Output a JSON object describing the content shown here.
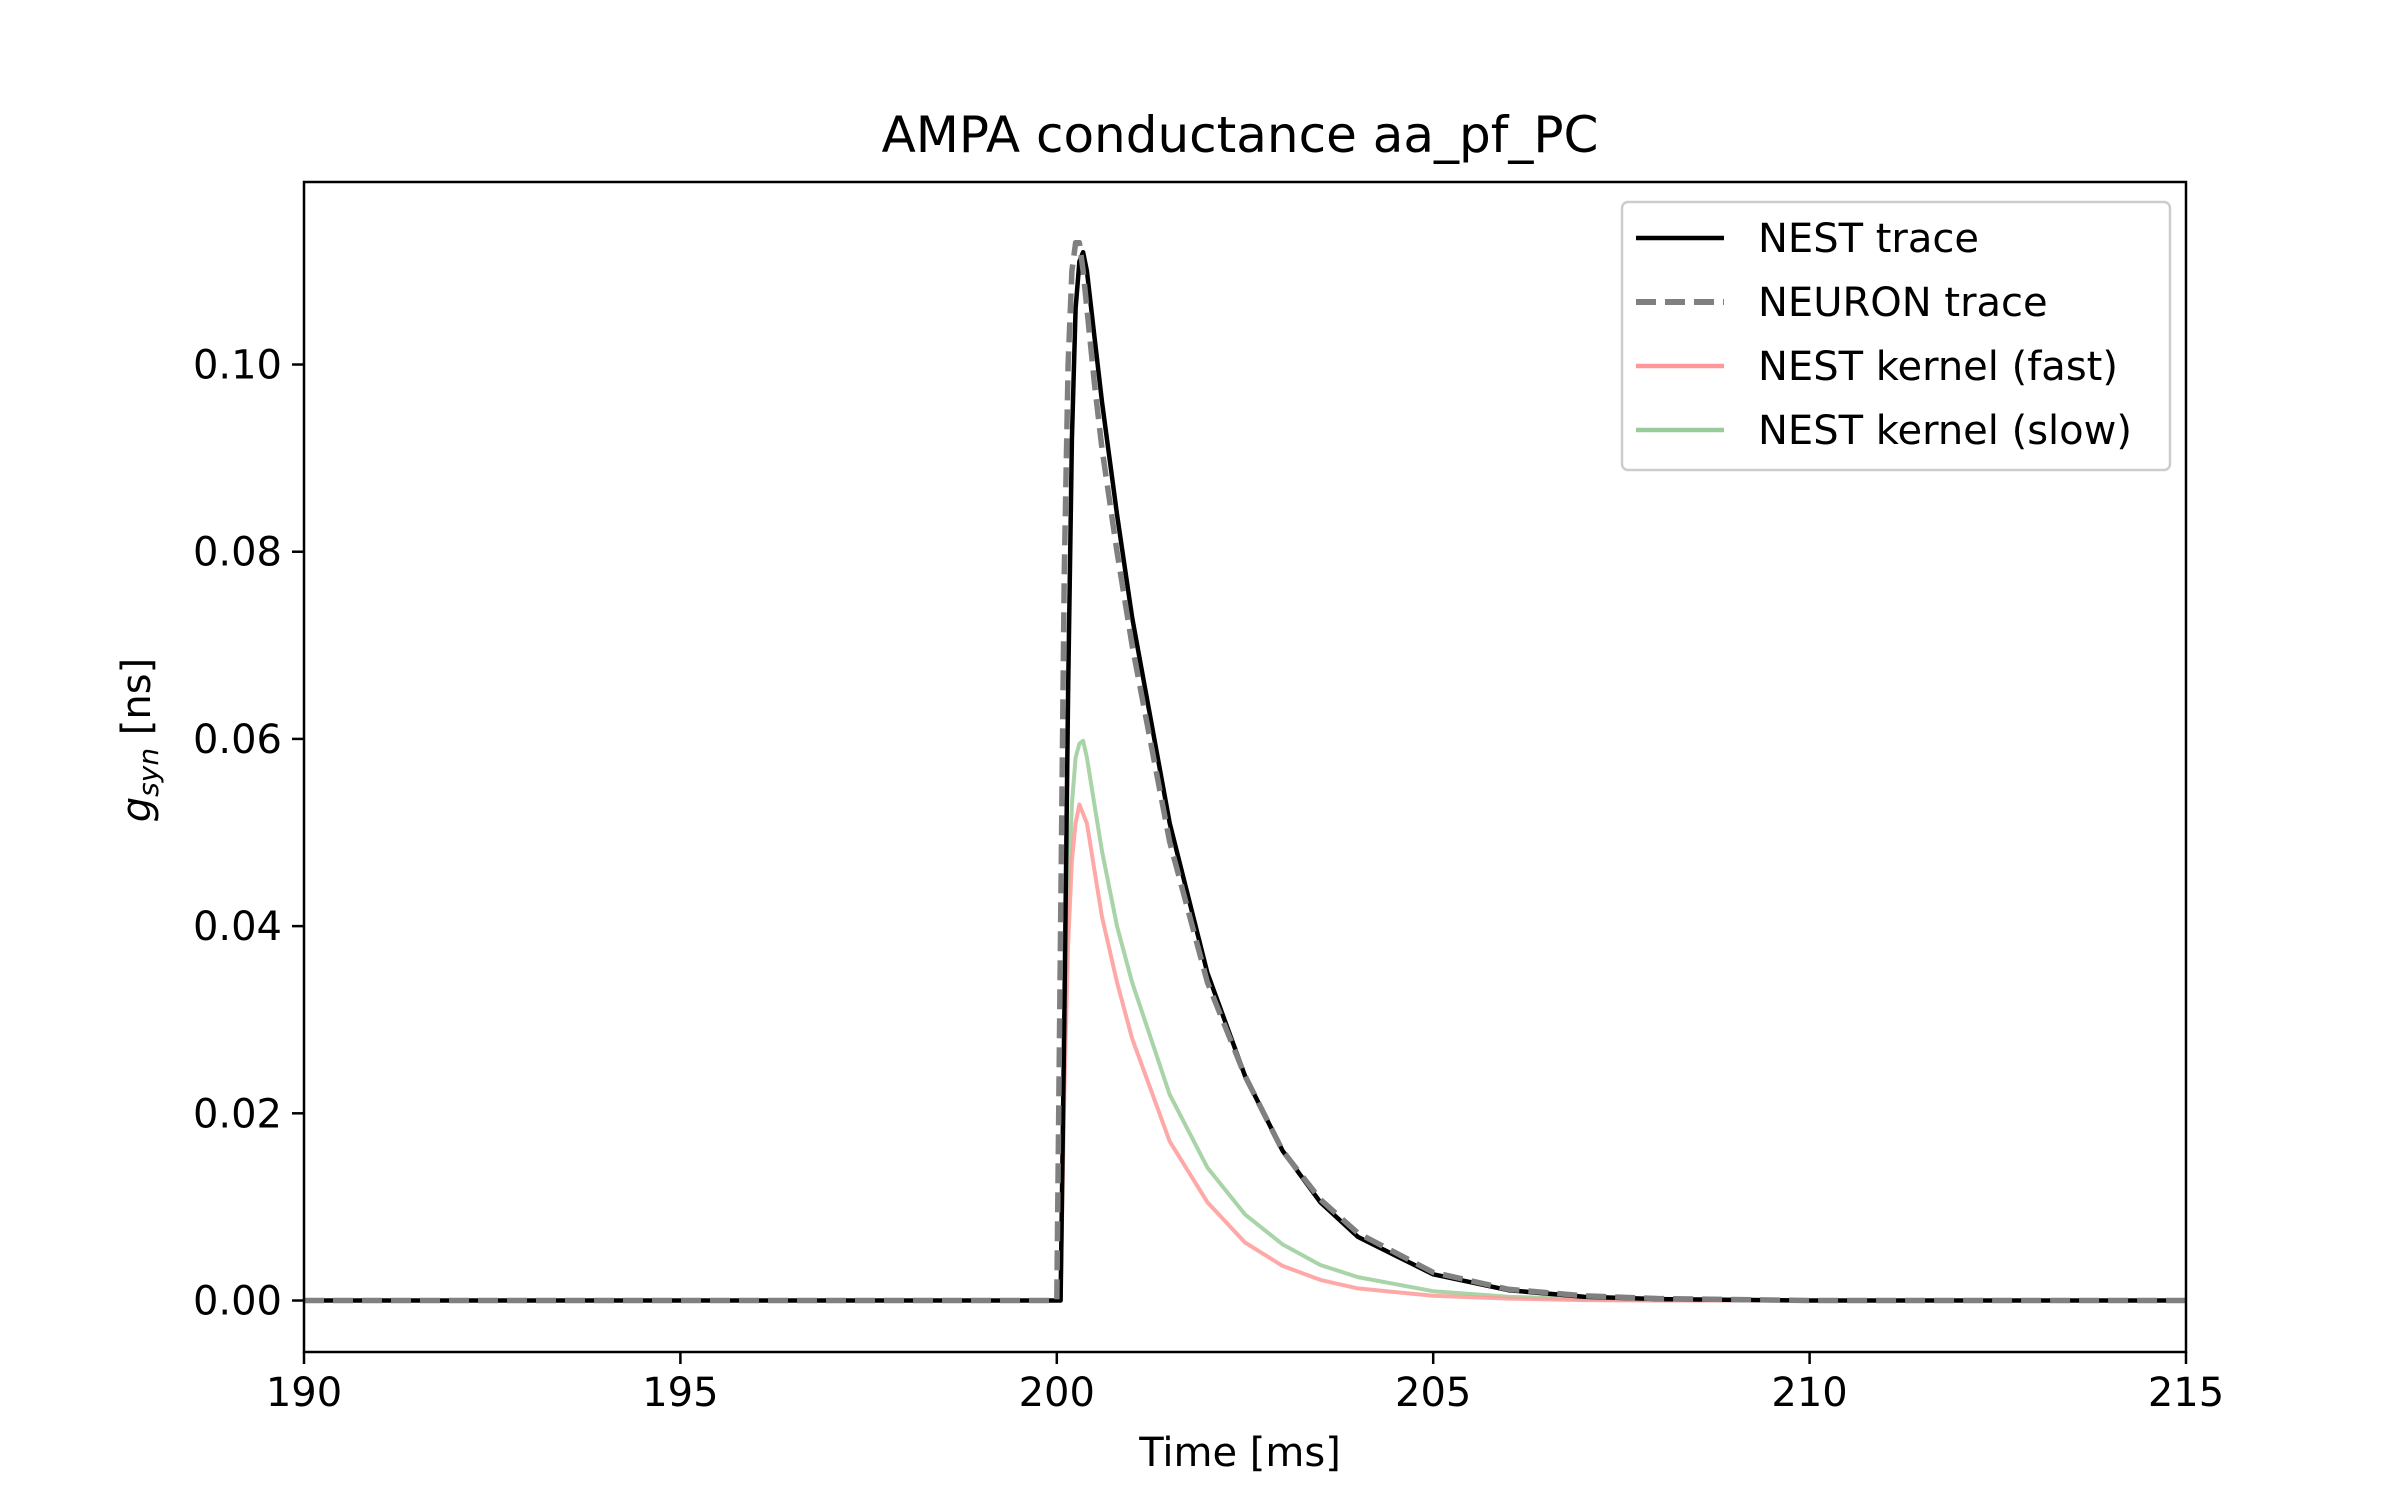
{
  "chart_data": {
    "type": "line",
    "title": "AMPA conductance aa_pf_PC",
    "xlabel": "Time [ms]",
    "ylabel": {
      "main": "g",
      "sub": "syn",
      "unit": " [ns]"
    },
    "xlim": [
      190,
      215
    ],
    "ylim": [
      -0.0055,
      0.1195
    ],
    "xticks": [
      190,
      195,
      200,
      205,
      210,
      215
    ],
    "xtick_labels": [
      "190",
      "195",
      "200",
      "205",
      "210",
      "215"
    ],
    "yticks": [
      0.0,
      0.02,
      0.04,
      0.06,
      0.08,
      0.1
    ],
    "ytick_labels": [
      "0.00",
      "0.02",
      "0.04",
      "0.06",
      "0.08",
      "0.10"
    ],
    "grid": false,
    "legend_position": "top-right",
    "series": [
      {
        "name": "NEST trace",
        "color": "#000000",
        "style": "solid",
        "x": [
          190,
          200.05,
          200.1,
          200.15,
          200.2,
          200.25,
          200.3,
          200.35,
          200.4,
          200.5,
          200.6,
          200.8,
          201.0,
          201.5,
          202.0,
          202.5,
          203.0,
          203.5,
          204.0,
          205.0,
          206.0,
          207.0,
          208.0,
          210.0,
          215.0
        ],
        "y": [
          0.0,
          0.0,
          0.03,
          0.065,
          0.092,
          0.106,
          0.111,
          0.112,
          0.11,
          0.103,
          0.096,
          0.084,
          0.073,
          0.051,
          0.035,
          0.024,
          0.016,
          0.0105,
          0.0068,
          0.0028,
          0.0011,
          0.0004,
          0.00015,
          0.0,
          0.0
        ]
      },
      {
        "name": "NEURON trace",
        "color": "#808080",
        "style": "dashed",
        "x": [
          190,
          200.0,
          200.05,
          200.1,
          200.15,
          200.2,
          200.25,
          200.3,
          200.35,
          200.4,
          200.5,
          200.6,
          200.8,
          201.0,
          201.5,
          202.0,
          202.5,
          203.0,
          203.5,
          204.0,
          205.0,
          206.0,
          207.0,
          208.0,
          210.0,
          215.0
        ],
        "y": [
          0.0,
          0.0,
          0.04,
          0.078,
          0.1,
          0.11,
          0.113,
          0.113,
          0.11,
          0.106,
          0.098,
          0.091,
          0.08,
          0.07,
          0.049,
          0.034,
          0.024,
          0.016,
          0.0108,
          0.0072,
          0.003,
          0.0012,
          0.0005,
          0.0002,
          0.0,
          0.0
        ]
      },
      {
        "name": "NEST kernel (fast)",
        "color": "#ff9999",
        "style": "solid",
        "x": [
          190,
          200.05,
          200.1,
          200.15,
          200.2,
          200.25,
          200.3,
          200.35,
          200.4,
          200.5,
          200.6,
          200.8,
          201.0,
          201.5,
          202.0,
          202.5,
          203.0,
          203.5,
          204.0,
          205.0,
          206.0,
          207.0,
          208.0,
          210.0,
          215.0
        ],
        "y": [
          0.0,
          0.0,
          0.022,
          0.038,
          0.047,
          0.051,
          0.053,
          0.052,
          0.051,
          0.046,
          0.041,
          0.034,
          0.028,
          0.017,
          0.0105,
          0.0062,
          0.0037,
          0.0022,
          0.0013,
          0.0005,
          0.0002,
          5e-05,
          0.0,
          0.0,
          0.0
        ]
      },
      {
        "name": "NEST kernel (slow)",
        "color": "#99cc99",
        "style": "solid",
        "x": [
          190,
          200.05,
          200.1,
          200.15,
          200.2,
          200.25,
          200.3,
          200.35,
          200.4,
          200.5,
          200.6,
          200.8,
          201.0,
          201.5,
          202.0,
          202.5,
          203.0,
          203.5,
          204.0,
          205.0,
          206.0,
          207.0,
          208.0,
          210.0,
          215.0
        ],
        "y": [
          0.0,
          0.0,
          0.025,
          0.043,
          0.053,
          0.058,
          0.0595,
          0.0598,
          0.058,
          0.053,
          0.048,
          0.04,
          0.034,
          0.022,
          0.0142,
          0.0092,
          0.006,
          0.0038,
          0.0025,
          0.001,
          0.0004,
          0.00015,
          0.0,
          0.0,
          0.0
        ]
      }
    ]
  }
}
